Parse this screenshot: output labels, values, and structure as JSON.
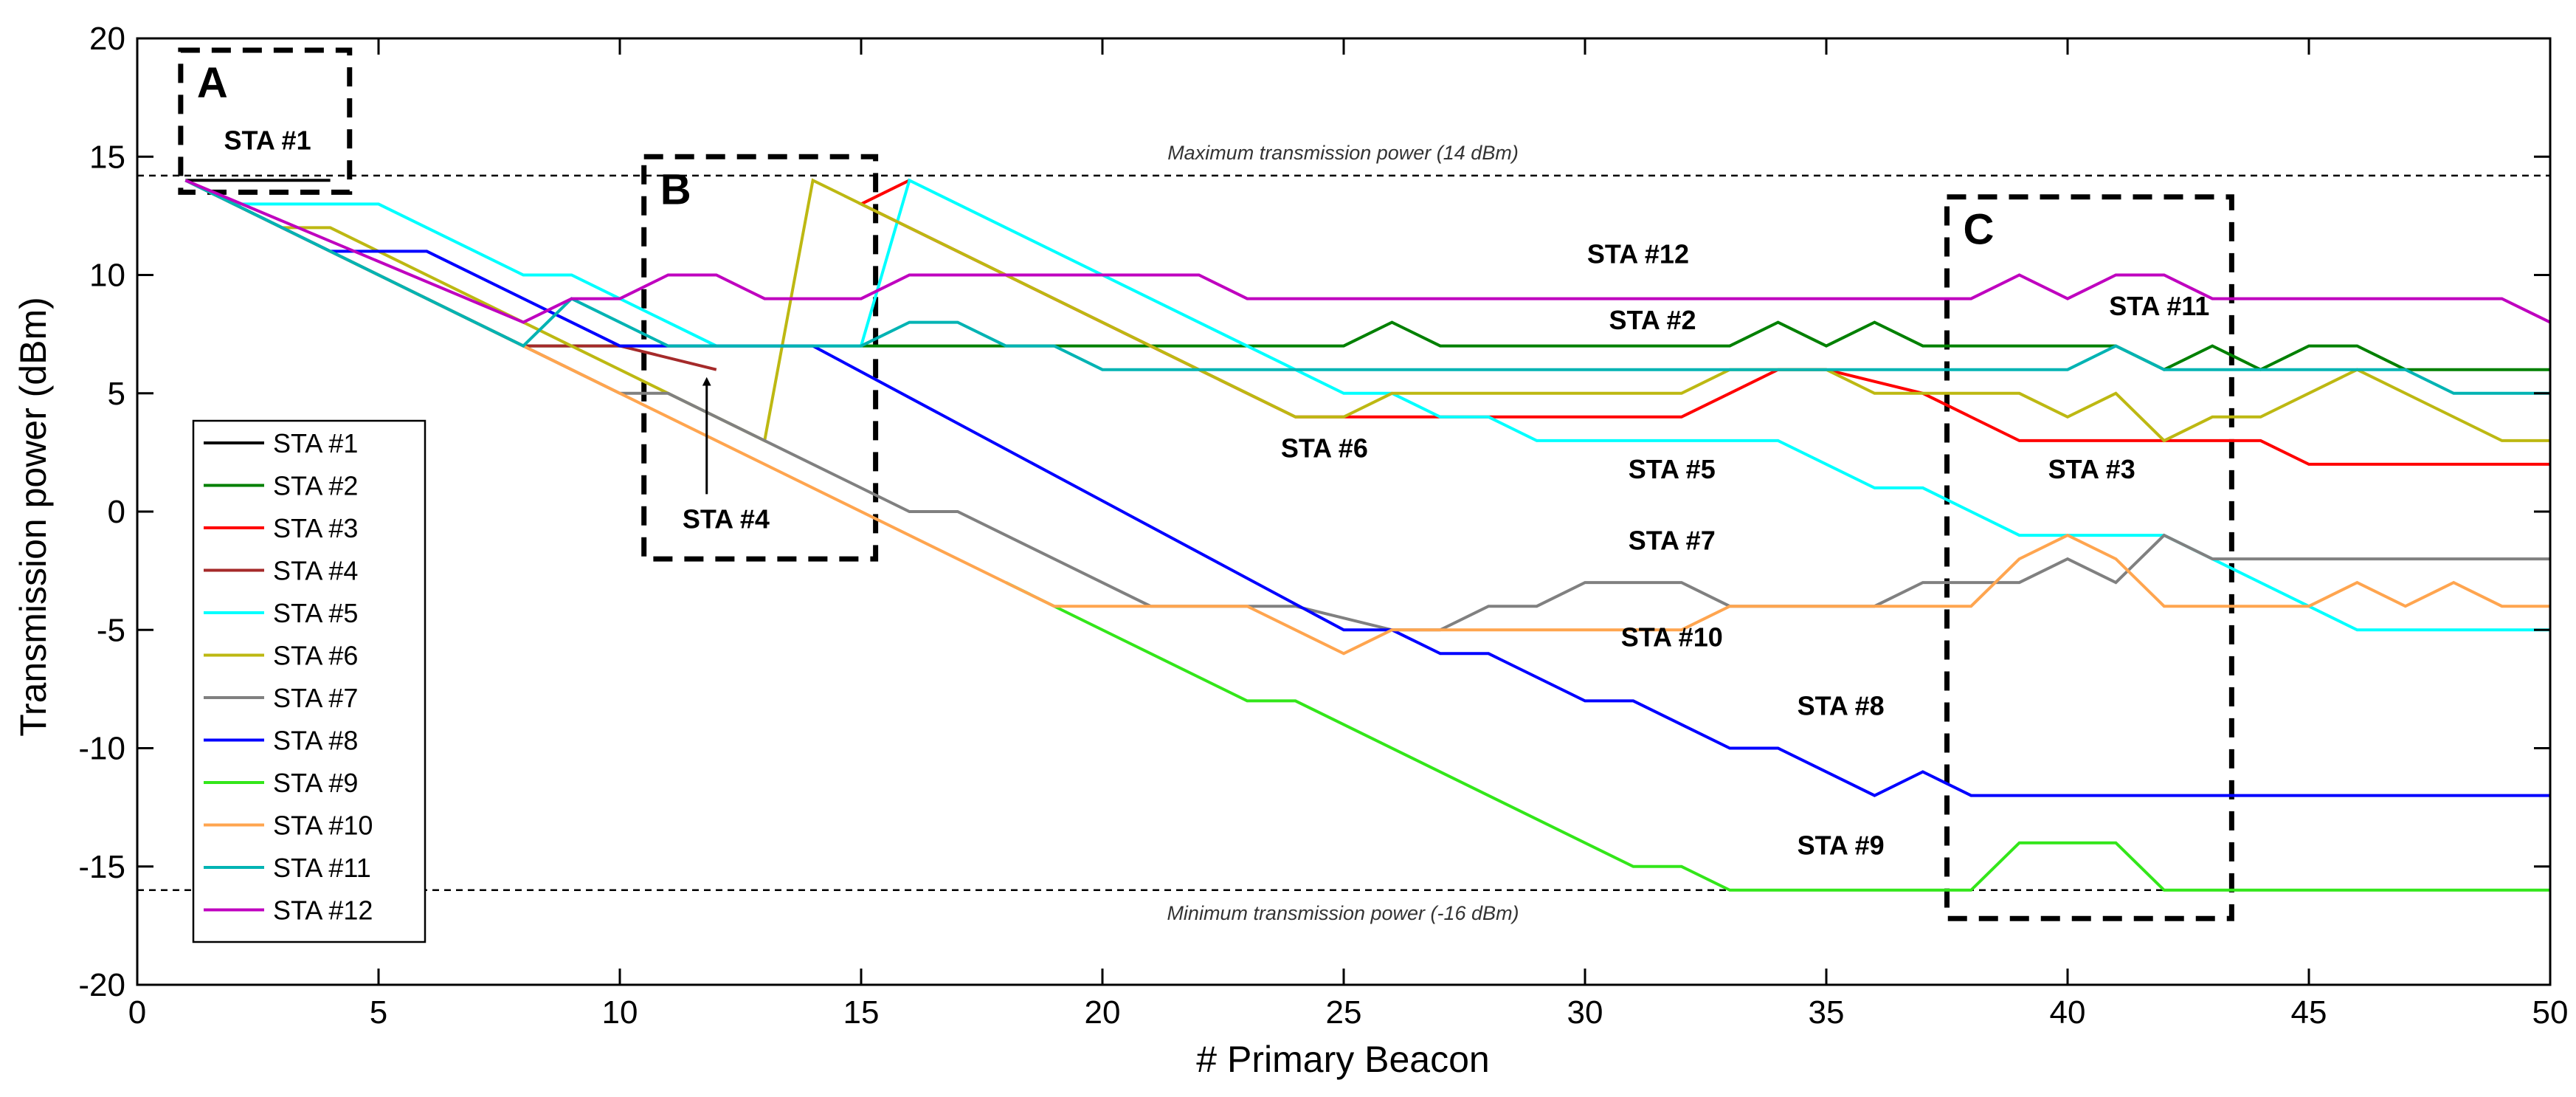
{
  "chart_data": {
    "type": "line",
    "title": "",
    "xlabel": "# Primary Beacon",
    "ylabel": "Transmission power (dBm)",
    "xlim": [
      0,
      50
    ],
    "ylim": [
      -20,
      20
    ],
    "xticks": [
      0,
      5,
      10,
      15,
      20,
      25,
      30,
      35,
      40,
      45,
      50
    ],
    "yticks": [
      -20,
      -15,
      -10,
      -5,
      0,
      5,
      10,
      15,
      20
    ],
    "grid": false,
    "legend_position": "bottom-left",
    "reference_lines": [
      {
        "y": 14.2,
        "label": "Maximum transmission power (14 dBm)"
      },
      {
        "y": -16,
        "label": "Minimum transmission power (-16 dBm)"
      }
    ],
    "boxes": [
      {
        "label": "A",
        "x0": 0.9,
        "x1": 4.4,
        "y0": 13.5,
        "y1": 19.5
      },
      {
        "label": "B",
        "x0": 10.5,
        "x1": 15.3,
        "y0": -2,
        "y1": 15
      },
      {
        "label": "C",
        "x0": 37.5,
        "x1": 43.4,
        "y0": -17.2,
        "y1": 13.3
      }
    ],
    "series": [
      {
        "name": "STA #1",
        "color": "#000000",
        "points": [
          [
            1,
            14
          ],
          [
            4,
            14
          ]
        ]
      },
      {
        "name": "STA #2",
        "color": "#008000",
        "points": [
          [
            1,
            14
          ],
          [
            8,
            7
          ],
          [
            9,
            7
          ],
          [
            10,
            7
          ],
          [
            15,
            7
          ],
          [
            21,
            7
          ],
          [
            25,
            7
          ],
          [
            26,
            8
          ],
          [
            27,
            7
          ],
          [
            33,
            7
          ],
          [
            34,
            8
          ],
          [
            35,
            7
          ],
          [
            36,
            8
          ],
          [
            37,
            7
          ],
          [
            41,
            7
          ],
          [
            42,
            6
          ],
          [
            43,
            7
          ],
          [
            44,
            6
          ],
          [
            45,
            7
          ],
          [
            46,
            7
          ],
          [
            47,
            6
          ],
          [
            50,
            6
          ]
        ]
      },
      {
        "name": "STA #3",
        "color": "#ff0000",
        "points": [
          [
            15,
            13
          ],
          [
            16,
            14
          ],
          [
            15,
            13
          ],
          [
            23,
            5
          ],
          [
            24,
            4
          ],
          [
            32,
            4
          ],
          [
            33,
            5
          ],
          [
            34,
            6
          ],
          [
            35,
            6
          ],
          [
            37,
            5
          ],
          [
            39,
            3
          ],
          [
            44,
            3
          ],
          [
            45,
            2
          ],
          [
            50,
            2
          ]
        ]
      },
      {
        "name": "STA #4",
        "color": "#a52a2a",
        "points": [
          [
            1,
            14
          ],
          [
            8,
            7
          ],
          [
            10,
            7
          ],
          [
            12,
            6
          ]
        ]
      },
      {
        "name": "STA #5",
        "color": "#00ffff",
        "points": [
          [
            1,
            14
          ],
          [
            2,
            13
          ],
          [
            5,
            13
          ],
          [
            8,
            10
          ],
          [
            9,
            10
          ],
          [
            11,
            8
          ],
          [
            12,
            7
          ],
          [
            13,
            7
          ],
          [
            14,
            7
          ],
          [
            15,
            7
          ],
          [
            16,
            14
          ],
          [
            25,
            5
          ],
          [
            26,
            5
          ],
          [
            27,
            4
          ],
          [
            28,
            4
          ],
          [
            29,
            3
          ],
          [
            34,
            3
          ],
          [
            36,
            1
          ],
          [
            37,
            1
          ],
          [
            39,
            -1
          ],
          [
            42,
            -1
          ],
          [
            46,
            -5
          ],
          [
            50,
            -5
          ]
        ]
      },
      {
        "name": "STA #6",
        "color": "#bdb812",
        "points": [
          [
            1,
            14
          ],
          [
            3,
            12
          ],
          [
            4,
            12
          ],
          [
            8,
            8
          ],
          [
            13,
            3
          ],
          [
            14,
            14
          ],
          [
            24,
            4
          ],
          [
            25,
            4
          ],
          [
            26,
            5
          ],
          [
            32,
            5
          ],
          [
            33,
            6
          ],
          [
            35,
            6
          ],
          [
            36,
            5
          ],
          [
            37,
            5
          ],
          [
            39,
            5
          ],
          [
            40,
            4
          ],
          [
            41,
            5
          ],
          [
            42,
            3
          ],
          [
            43,
            4
          ],
          [
            44,
            4
          ],
          [
            46,
            6
          ],
          [
            49,
            3
          ],
          [
            50,
            3
          ]
        ]
      },
      {
        "name": "STA #7",
        "color": "#808080",
        "points": [
          [
            1,
            14
          ],
          [
            9,
            6
          ],
          [
            10,
            5
          ],
          [
            11,
            5
          ],
          [
            16,
            0
          ],
          [
            17,
            0
          ],
          [
            21,
            -4
          ],
          [
            24,
            -4
          ],
          [
            26,
            -5
          ],
          [
            27,
            -5
          ],
          [
            28,
            -4
          ],
          [
            29,
            -4
          ],
          [
            30,
            -3
          ],
          [
            32,
            -3
          ],
          [
            33,
            -4
          ],
          [
            36,
            -4
          ],
          [
            37,
            -3
          ],
          [
            39,
            -3
          ],
          [
            40,
            -2
          ],
          [
            41,
            -3
          ],
          [
            42,
            -1
          ],
          [
            43,
            -2
          ],
          [
            50,
            -2
          ]
        ]
      },
      {
        "name": "STA #8",
        "color": "#0000ff",
        "points": [
          [
            1,
            14
          ],
          [
            4,
            11
          ],
          [
            6,
            11
          ],
          [
            10,
            7
          ],
          [
            14,
            7
          ],
          [
            25,
            -5
          ],
          [
            26,
            -5
          ],
          [
            27,
            -6
          ],
          [
            28,
            -6
          ],
          [
            30,
            -8
          ],
          [
            31,
            -8
          ],
          [
            33,
            -10
          ],
          [
            34,
            -10
          ],
          [
            36,
            -12
          ],
          [
            37,
            -11
          ],
          [
            38,
            -12
          ],
          [
            50,
            -12
          ]
        ]
      },
      {
        "name": "STA #9",
        "color": "#33e61a",
        "points": [
          [
            18,
            -3
          ],
          [
            23,
            -8
          ],
          [
            24,
            -8
          ],
          [
            31,
            -15
          ],
          [
            32,
            -15
          ],
          [
            33,
            -16
          ],
          [
            38,
            -16
          ],
          [
            39,
            -14
          ],
          [
            41,
            -14
          ],
          [
            42,
            -16
          ],
          [
            50,
            -16
          ]
        ]
      },
      {
        "name": "STA #10",
        "color": "#ffa54f",
        "points": [
          [
            1,
            14
          ],
          [
            19,
            -4
          ],
          [
            23,
            -4
          ],
          [
            25,
            -6
          ],
          [
            26,
            -5
          ],
          [
            32,
            -5
          ],
          [
            33,
            -4
          ],
          [
            38,
            -4
          ],
          [
            39,
            -2
          ],
          [
            40,
            -1
          ],
          [
            41,
            -2
          ],
          [
            42,
            -4
          ],
          [
            45,
            -4
          ],
          [
            46,
            -3
          ],
          [
            47,
            -4
          ],
          [
            48,
            -3
          ],
          [
            49,
            -4
          ],
          [
            50,
            -4
          ]
        ]
      },
      {
        "name": "STA #11",
        "color": "#00b3b3",
        "points": [
          [
            1,
            14
          ],
          [
            8,
            7
          ],
          [
            9,
            9
          ],
          [
            10,
            8
          ],
          [
            11,
            7
          ],
          [
            15,
            7
          ],
          [
            16,
            8
          ],
          [
            17,
            8
          ],
          [
            18,
            7
          ],
          [
            19,
            7
          ],
          [
            20,
            6
          ],
          [
            40,
            6
          ],
          [
            41,
            7
          ],
          [
            42,
            6
          ],
          [
            47,
            6
          ],
          [
            48,
            5
          ],
          [
            50,
            5
          ]
        ]
      },
      {
        "name": "STA #12",
        "color": "#bf00bf",
        "points": [
          [
            1,
            14
          ],
          [
            8,
            8
          ],
          [
            9,
            9
          ],
          [
            10,
            9
          ],
          [
            11,
            10
          ],
          [
            12,
            10
          ],
          [
            13,
            9
          ],
          [
            15,
            9
          ],
          [
            16,
            10
          ],
          [
            22,
            10
          ],
          [
            23,
            9
          ],
          [
            38,
            9
          ],
          [
            39,
            10
          ],
          [
            40,
            9
          ],
          [
            41,
            10
          ],
          [
            42,
            10
          ],
          [
            43,
            9
          ],
          [
            49,
            9
          ],
          [
            50,
            8
          ]
        ]
      }
    ],
    "annotations": [
      {
        "text": "STA #1",
        "x": 2.7,
        "y": 15.3
      },
      {
        "text": "STA #4",
        "x": 12.2,
        "y": -0.7,
        "arrow_to": [
          11.8,
          5.5
        ]
      },
      {
        "text": "STA #12",
        "x": 31.1,
        "y": 10.5
      },
      {
        "text": "STA #2",
        "x": 31.4,
        "y": 7.7
      },
      {
        "text": "STA #11",
        "x": 41.9,
        "y": 8.3
      },
      {
        "text": "STA #6",
        "x": 24.6,
        "y": 2.3
      },
      {
        "text": "STA #5",
        "x": 31.8,
        "y": 1.4
      },
      {
        "text": "STA #3",
        "x": 40.5,
        "y": 1.4
      },
      {
        "text": "STA #7",
        "x": 31.8,
        "y": -1.6
      },
      {
        "text": "STA #10",
        "x": 31.8,
        "y": -5.7
      },
      {
        "text": "STA #8",
        "x": 35.3,
        "y": -8.6
      },
      {
        "text": "STA #9",
        "x": 35.3,
        "y": -14.5
      }
    ]
  }
}
